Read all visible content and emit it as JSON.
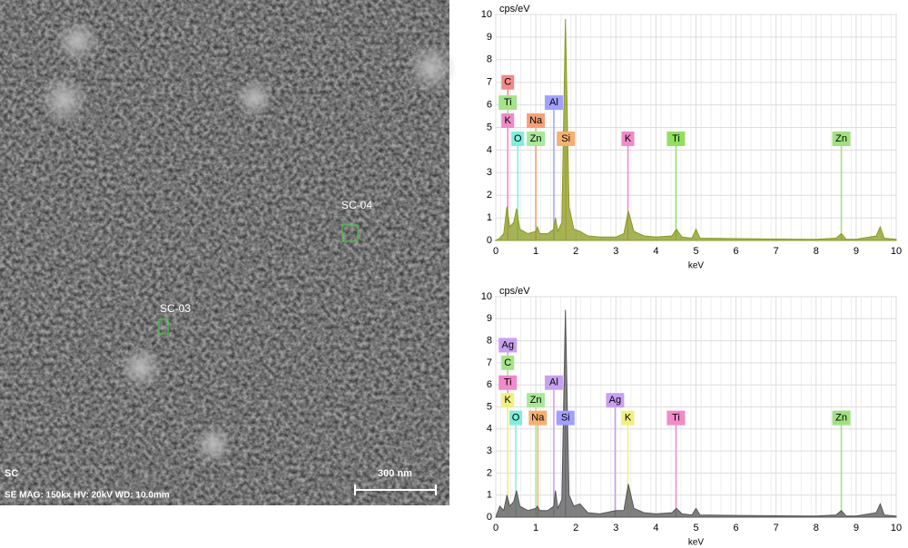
{
  "sem_image": {
    "regions": [
      "SC-04",
      "SC-03"
    ],
    "scale_bar": "300 nm",
    "sample": "SC",
    "info": "SE  MAG: 150kx  HV: 20kV  WD: 10.0mm"
  },
  "chart_data": [
    {
      "type": "spectrum",
      "y_label": "cps/eV",
      "x_label": "keV",
      "color": "#8a9a1e",
      "x": [
        0.1,
        0.2,
        0.28,
        0.35,
        0.45,
        0.52,
        0.6,
        0.8,
        1.0,
        1.04,
        1.1,
        1.3,
        1.45,
        1.49,
        1.55,
        1.65,
        1.74,
        1.83,
        1.95,
        2.1,
        2.3,
        2.6,
        3.0,
        3.2,
        3.31,
        3.45,
        3.7,
        4.0,
        4.4,
        4.51,
        4.65,
        4.9,
        5.0,
        5.1,
        6,
        7,
        8,
        8.5,
        8.63,
        8.75,
        9,
        9.5,
        9.6,
        9.7,
        10
      ],
      "values": [
        0.1,
        0.3,
        1.5,
        0.6,
        0.8,
        1.4,
        0.5,
        0.3,
        0.4,
        0.6,
        0.3,
        0.3,
        0.5,
        1.0,
        0.4,
        0.8,
        9.8,
        1.5,
        0.5,
        0.4,
        0.2,
        0.15,
        0.15,
        0.3,
        1.3,
        0.4,
        0.2,
        0.15,
        0.2,
        0.5,
        0.15,
        0.1,
        0.5,
        0.1,
        0.08,
        0.06,
        0.05,
        0.1,
        0.3,
        0.05,
        0.05,
        0.2,
        0.6,
        0.1,
        0.05
      ],
      "xlim": [
        0,
        10
      ],
      "ylim": [
        0,
        10
      ],
      "xticks": [
        0,
        1,
        2,
        3,
        4,
        5,
        6,
        7,
        8,
        9,
        10
      ],
      "yticks": [
        0,
        1,
        2,
        3,
        4,
        5,
        6,
        7,
        8,
        9,
        10
      ],
      "grid": true,
      "annotations": [
        {
          "text": "C",
          "color": "#f08a8a"
        },
        {
          "text": "Ti",
          "color": "#a6e38a"
        },
        {
          "text": "K",
          "color": "#f08ac8"
        },
        {
          "text": "O",
          "color": "#80eedc"
        },
        {
          "text": "Zn",
          "color": "#a8e89a"
        },
        {
          "text": "Na",
          "color": "#f5a07a"
        },
        {
          "text": "Al",
          "color": "#a0a0ff"
        },
        {
          "text": "Si",
          "color": "#f5b070"
        },
        {
          "text": "K",
          "color": "#f08ac8"
        },
        {
          "text": "Ti",
          "color": "#90e060"
        },
        {
          "text": "Zn",
          "color": "#a0e080"
        }
      ]
    },
    {
      "type": "spectrum",
      "y_label": "cps/eV",
      "x_label": "keV",
      "color": "#555555",
      "x": [
        0.1,
        0.2,
        0.28,
        0.35,
        0.45,
        0.52,
        0.6,
        0.8,
        1.0,
        1.04,
        1.1,
        1.3,
        1.45,
        1.49,
        1.55,
        1.65,
        1.74,
        1.83,
        1.95,
        2.1,
        2.3,
        2.6,
        3.0,
        3.2,
        3.31,
        3.45,
        3.7,
        4.0,
        4.4,
        4.51,
        4.65,
        4.9,
        5.0,
        5.1,
        6,
        7,
        8,
        8.5,
        8.63,
        8.75,
        9,
        9.5,
        9.6,
        9.7,
        10
      ],
      "values": [
        0.5,
        0.3,
        1.0,
        0.5,
        0.7,
        1.2,
        0.5,
        0.3,
        0.4,
        0.5,
        0.3,
        0.3,
        0.5,
        1.2,
        0.4,
        0.8,
        9.4,
        1.0,
        0.5,
        0.6,
        0.2,
        0.15,
        0.3,
        0.3,
        1.5,
        0.4,
        0.2,
        0.15,
        0.2,
        0.4,
        0.15,
        0.1,
        0.4,
        0.1,
        0.08,
        0.06,
        0.05,
        0.1,
        0.3,
        0.05,
        0.05,
        0.2,
        0.6,
        0.1,
        0.05
      ],
      "xlim": [
        0,
        10
      ],
      "ylim": [
        0,
        10
      ],
      "xticks": [
        0,
        1,
        2,
        3,
        4,
        5,
        6,
        7,
        8,
        9,
        10
      ],
      "yticks": [
        0,
        1,
        2,
        3,
        4,
        5,
        6,
        7,
        8,
        9,
        10
      ],
      "grid": true,
      "annotations": [
        {
          "text": "Ag",
          "color": "#c8a0f0"
        },
        {
          "text": "C",
          "color": "#a6e38a"
        },
        {
          "text": "Ti",
          "color": "#f08ac8"
        },
        {
          "text": "K",
          "color": "#f0f080"
        },
        {
          "text": "O",
          "color": "#80eedc"
        },
        {
          "text": "Zn",
          "color": "#a8e89a"
        },
        {
          "text": "Na",
          "color": "#f5b070"
        },
        {
          "text": "Al",
          "color": "#c8a0f0"
        },
        {
          "text": "Si",
          "color": "#a0a0ff"
        },
        {
          "text": "Ag",
          "color": "#c8a0f0"
        },
        {
          "text": "K",
          "color": "#f0f080"
        },
        {
          "text": "Ti",
          "color": "#f08ac8"
        },
        {
          "text": "Zn",
          "color": "#a0e080"
        }
      ]
    }
  ]
}
